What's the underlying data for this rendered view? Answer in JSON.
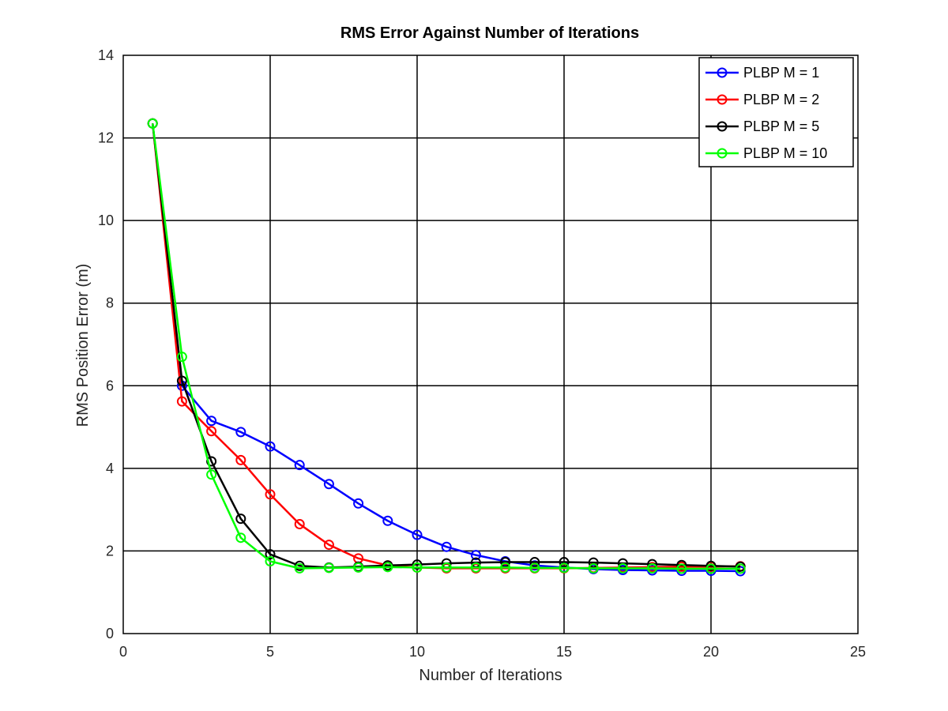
{
  "chart_data": {
    "type": "line",
    "title": "RMS Error Against Number of Iterations",
    "xlabel": "Number of Iterations",
    "ylabel": "RMS Position Error (m)",
    "xlim": [
      0,
      25
    ],
    "ylim": [
      0,
      14
    ],
    "xticks": [
      0,
      5,
      10,
      15,
      20,
      25
    ],
    "yticks": [
      0,
      2,
      4,
      6,
      8,
      10,
      12,
      14
    ],
    "grid": true,
    "legend_position": "top-right",
    "x": [
      1,
      2,
      3,
      4,
      5,
      6,
      7,
      8,
      9,
      10,
      11,
      12,
      13,
      14,
      15,
      16,
      17,
      18,
      19,
      20,
      21
    ],
    "series": [
      {
        "name": "PLBP M = 1",
        "color": "#0000ff",
        "marker": "circle",
        "values": [
          12.35,
          6.0,
          5.15,
          4.88,
          4.53,
          4.08,
          3.62,
          3.15,
          2.73,
          2.39,
          2.1,
          1.9,
          1.75,
          1.65,
          1.6,
          1.56,
          1.54,
          1.53,
          1.52,
          1.52,
          1.51
        ]
      },
      {
        "name": "PLBP M = 2",
        "color": "#ff0000",
        "marker": "circle",
        "values": [
          12.35,
          5.62,
          4.9,
          4.2,
          3.37,
          2.65,
          2.15,
          1.82,
          1.65,
          1.6,
          1.58,
          1.58,
          1.58,
          1.58,
          1.58,
          1.59,
          1.6,
          1.61,
          1.62,
          1.62,
          1.63
        ]
      },
      {
        "name": "PLBP M = 5",
        "color": "#000000",
        "marker": "circle",
        "values": [
          12.35,
          6.12,
          4.17,
          2.78,
          1.92,
          1.64,
          1.6,
          1.62,
          1.65,
          1.67,
          1.7,
          1.72,
          1.73,
          1.73,
          1.73,
          1.72,
          1.7,
          1.68,
          1.66,
          1.64,
          1.62
        ]
      },
      {
        "name": "PLBP M = 10",
        "color": "#00ff00",
        "marker": "circle",
        "values": [
          12.35,
          6.7,
          3.85,
          2.32,
          1.75,
          1.58,
          1.59,
          1.6,
          1.61,
          1.6,
          1.6,
          1.6,
          1.6,
          1.59,
          1.59,
          1.58,
          1.58,
          1.58,
          1.57,
          1.57,
          1.57
        ]
      }
    ]
  }
}
